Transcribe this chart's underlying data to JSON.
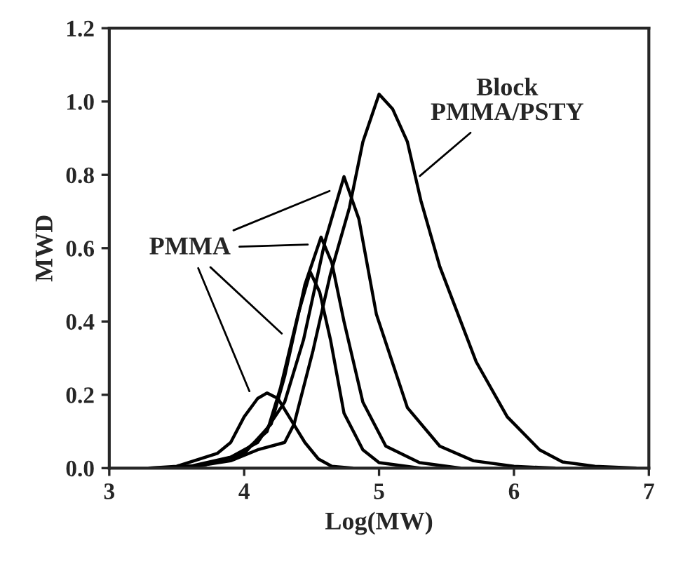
{
  "chart_data": {
    "type": "line",
    "xlabel": "Log(MW)",
    "ylabel": "MWD",
    "xlim": [
      3,
      7
    ],
    "xticks": [
      3,
      4,
      5,
      6,
      7
    ],
    "ylim": [
      0,
      1.2
    ],
    "yticks": [
      {
        "value": 0,
        "label": "0.0"
      },
      {
        "value": 0.2,
        "label": "0.2"
      },
      {
        "value": 0.4,
        "label": "0.4"
      },
      {
        "value": 0.6,
        "label": "0.6"
      },
      {
        "value": 0.8,
        "label": "0.8"
      },
      {
        "value": 1.0,
        "label": "1.0"
      },
      {
        "value": 1.2,
        "label": "1.2"
      }
    ],
    "grid": false,
    "legend": false,
    "marker": "none",
    "line_style": "solid",
    "annotations": [
      "PMMA",
      {
        "text": "Block\nPMMA/PSTY",
        "x": 5.28,
        "y": 0.79
      }
    ],
    "series": [
      {
        "color": "#000000",
        "x": [
          3.3,
          3.5,
          3.8,
          3.9,
          4.0,
          4.1,
          4.17,
          4.25,
          4.35,
          4.45,
          4.55,
          4.65,
          4.8
        ],
        "values": [
          0,
          0.005,
          0.04,
          0.07,
          0.14,
          0.19,
          0.205,
          0.19,
          0.13,
          0.07,
          0.025,
          0.005,
          0
        ]
      },
      {
        "color": "#000000",
        "x": [
          3.4,
          3.7,
          3.97,
          4.17,
          4.27,
          4.4,
          4.49,
          4.56,
          4.64,
          4.74,
          4.88,
          5.0,
          5.3
        ],
        "values": [
          0,
          0.008,
          0.036,
          0.1,
          0.22,
          0.42,
          0.535,
          0.48,
          0.35,
          0.15,
          0.05,
          0.015,
          0
        ]
      },
      {
        "color": "#000000",
        "x": [
          3.4,
          3.7,
          4.0,
          4.2,
          4.3,
          4.45,
          4.57,
          4.65,
          4.74,
          4.88,
          5.05,
          5.3,
          5.6
        ],
        "values": [
          0,
          0.008,
          0.04,
          0.12,
          0.25,
          0.5,
          0.63,
          0.56,
          0.4,
          0.18,
          0.06,
          0.015,
          0
        ]
      },
      {
        "color": "#000000",
        "x": [
          3.4,
          3.6,
          3.9,
          4.1,
          4.3,
          4.44,
          4.6,
          4.74,
          4.85,
          4.98,
          5.21,
          5.45,
          5.7,
          6.0,
          6.3
        ],
        "values": [
          0,
          0.005,
          0.03,
          0.07,
          0.18,
          0.35,
          0.62,
          0.795,
          0.68,
          0.42,
          0.165,
          0.06,
          0.02,
          0.005,
          0
        ]
      },
      {
        "color": "#000000",
        "x": [
          3.3,
          3.6,
          3.9,
          4.1,
          4.3,
          4.37,
          4.51,
          4.64,
          4.78,
          4.88,
          5.0,
          5.1,
          5.21,
          5.31,
          5.45,
          5.72,
          5.95,
          6.19,
          6.36,
          6.6,
          6.9
        ],
        "values": [
          0,
          0.003,
          0.02,
          0.05,
          0.07,
          0.12,
          0.32,
          0.53,
          0.71,
          0.89,
          1.02,
          0.98,
          0.89,
          0.73,
          0.55,
          0.29,
          0.14,
          0.05,
          0.017,
          0.005,
          0
        ]
      }
    ]
  }
}
